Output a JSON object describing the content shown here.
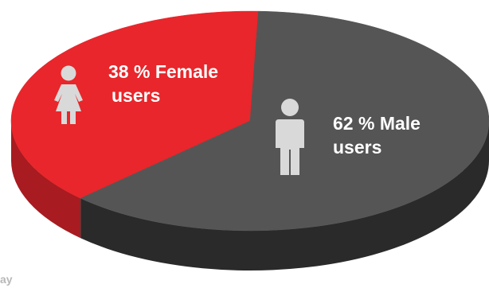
{
  "chart_data": {
    "type": "pie",
    "slices": [
      {
        "label_line1": "38 % Female",
        "label_line2": "users",
        "value": 38,
        "icon": "female-person-icon",
        "color": "#e8262b",
        "side_color": "#a81b20",
        "icon_color": "#d9d9d9"
      },
      {
        "label_line1": "62 % Male",
        "label_line2": "users",
        "value": 62,
        "icon": "male-person-icon",
        "color": "#555555",
        "side_color": "#2a2a2a",
        "icon_color": "#d9d9d9"
      }
    ]
  },
  "watermark": "ay"
}
